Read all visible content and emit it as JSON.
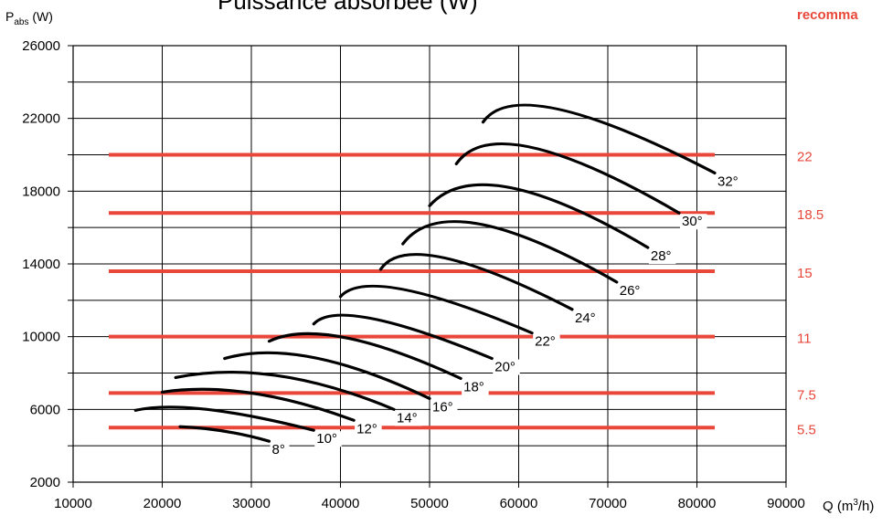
{
  "chart_data": {
    "type": "line",
    "title": "Puissance absorbée (W)",
    "corner_label": "recomma",
    "ylabel": {
      "main": "P",
      "sub": "abs",
      "unit": " (W)"
    },
    "xlabel": {
      "main": "Q (m",
      "sup": "3",
      "tail": "/h)"
    },
    "xlim": [
      10000,
      90000
    ],
    "ylim": [
      2000,
      26000
    ],
    "x_ticks": [
      10000,
      20000,
      30000,
      40000,
      50000,
      60000,
      70000,
      80000,
      90000
    ],
    "y_ticks": [
      2000,
      6000,
      10000,
      14000,
      18000,
      22000,
      26000
    ],
    "grid": true,
    "colors": {
      "curve": "#000000",
      "power_line": "#e8473a",
      "power_text": "#e8473a"
    },
    "series": [
      {
        "name": "8°",
        "x": [
          22000,
          27000,
          32000
        ],
        "y": [
          5050,
          4800,
          4250
        ]
      },
      {
        "name": "10°",
        "x": [
          17000,
          25000,
          37000
        ],
        "y": [
          5950,
          6000,
          4850
        ]
      },
      {
        "name": "12°",
        "x": [
          20000,
          30000,
          41500
        ],
        "y": [
          6950,
          6900,
          5400
        ]
      },
      {
        "name": "14°",
        "x": [
          21500,
          33000,
          46000
        ],
        "y": [
          7750,
          7850,
          6000
        ]
      },
      {
        "name": "16°",
        "x": [
          27000,
          37000,
          50000
        ],
        "y": [
          8800,
          8850,
          6600
        ]
      },
      {
        "name": "18°",
        "x": [
          32000,
          40500,
          53500
        ],
        "y": [
          9750,
          9950,
          7700
        ]
      },
      {
        "name": "20°",
        "x": [
          37000,
          43500,
          57000
        ],
        "y": [
          10700,
          11000,
          8800
        ]
      },
      {
        "name": "22°",
        "x": [
          40000,
          47000,
          61500
        ],
        "y": [
          12200,
          12600,
          10200
        ]
      },
      {
        "name": "24°",
        "x": [
          44500,
          51500,
          66000
        ],
        "y": [
          13700,
          14350,
          11500
        ]
      },
      {
        "name": "26°",
        "x": [
          47000,
          55500,
          71000
        ],
        "y": [
          15100,
          16200,
          13000
        ]
      },
      {
        "name": "28°",
        "x": [
          50000,
          59000,
          74500
        ],
        "y": [
          17200,
          18200,
          14900
        ]
      },
      {
        "name": "30°",
        "x": [
          53000,
          61500,
          78000
        ],
        "y": [
          19500,
          20400,
          16800
        ]
      },
      {
        "name": "32°",
        "x": [
          56000,
          64500,
          82000
        ],
        "y": [
          21800,
          22500,
          19000
        ]
      }
    ],
    "power_lines": [
      {
        "label": "22",
        "y": 20000,
        "x": [
          14000,
          82000
        ]
      },
      {
        "label": "18.5",
        "y": 16800,
        "x": [
          14000,
          82000
        ]
      },
      {
        "label": "15",
        "y": 13600,
        "x": [
          14000,
          82000
        ]
      },
      {
        "label": "11",
        "y": 10000,
        "x": [
          14000,
          82000
        ]
      },
      {
        "label": "7.5",
        "y": 6900,
        "x": [
          14000,
          82000
        ]
      },
      {
        "label": "5.5",
        "y": 5000,
        "x": [
          14000,
          82000
        ]
      }
    ]
  }
}
